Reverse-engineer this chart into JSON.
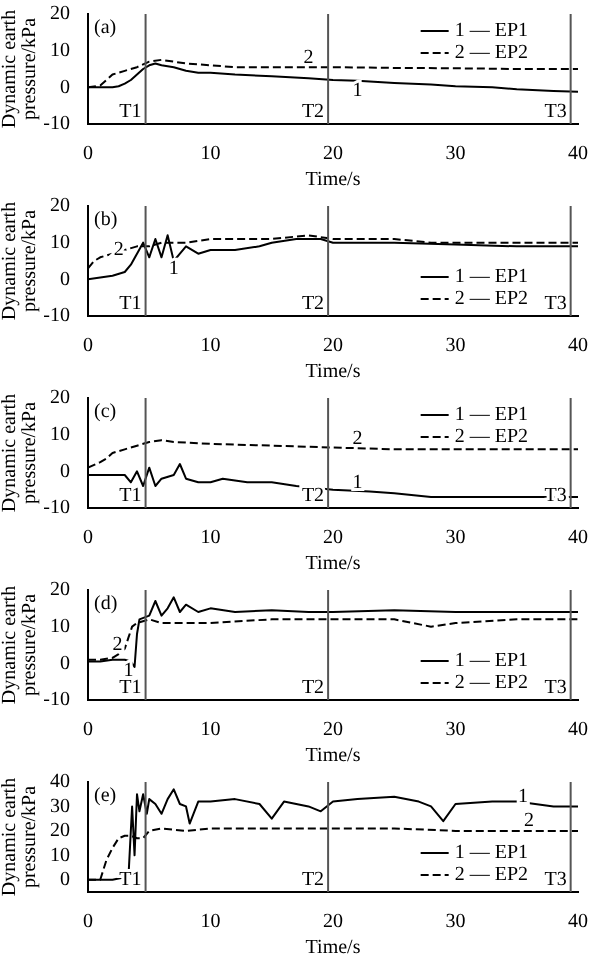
{
  "chart_data": [
    {
      "type": "line",
      "xlabel": "Time/s",
      "ylabel": "Dynamic earth pressure/kPa",
      "xlim": [
        0,
        40
      ],
      "xticks": [
        0,
        10,
        20,
        30,
        40
      ],
      "ylim": [
        -10,
        20
      ],
      "yticks": [
        -10,
        0,
        10,
        20
      ],
      "legend": "top right",
      "marker": "none",
      "annotations": [
        "(a)",
        {
          "text": "1",
          "x": 22,
          "y": -1
        },
        {
          "text": "2",
          "x": 18,
          "y": 8
        }
      ],
      "ref_lines": [
        {
          "axis": "x",
          "value": 4.7,
          "label": "T1"
        },
        {
          "axis": "x",
          "value": 19.6,
          "label": "T2"
        },
        {
          "axis": "x",
          "value": 39.4,
          "label": "T3"
        }
      ],
      "series": [
        {
          "name": "1 — EP1",
          "color": "#000000",
          "line_style": "solid",
          "x": [
            0,
            1,
            2,
            2.5,
            3,
            3.5,
            4,
            4.5,
            5,
            5.5,
            6,
            7,
            8,
            9,
            10,
            12,
            15,
            18,
            20,
            22,
            25,
            28,
            30,
            33,
            35,
            38,
            40
          ],
          "values": [
            0,
            0,
            0,
            0.3,
            1,
            2,
            3.5,
            5,
            6,
            6.5,
            6,
            5.5,
            4.5,
            4,
            4,
            3.5,
            3,
            2.5,
            2,
            1.8,
            1.2,
            0.8,
            0.3,
            0,
            -0.5,
            -1,
            -1.2
          ]
        },
        {
          "name": "2 — EP2",
          "color": "#000000",
          "line_style": "dashed",
          "x": [
            0,
            1,
            1.5,
            2,
            2.5,
            3,
            4,
            5,
            6,
            7,
            8,
            10,
            12,
            15,
            18,
            20,
            25,
            30,
            35,
            40
          ],
          "values": [
            0,
            0.5,
            2,
            3.5,
            4,
            4.5,
            5.5,
            7,
            7.5,
            7,
            6.5,
            6,
            5.5,
            5.5,
            5.5,
            5.5,
            5.3,
            5.2,
            5,
            5
          ]
        }
      ]
    },
    {
      "type": "line",
      "xlabel": "Time/s",
      "ylabel": "Dynamic earth pressure/kPa",
      "xlim": [
        0,
        40
      ],
      "xticks": [
        0,
        10,
        20,
        30,
        40
      ],
      "ylim": [
        -10,
        20
      ],
      "yticks": [
        -10,
        0,
        10,
        20
      ],
      "legend": "bottom right",
      "marker": "none",
      "annotations": [
        "(b)",
        {
          "text": "1",
          "x": 7,
          "y": 3
        },
        {
          "text": "2",
          "x": 2.5,
          "y": 8
        }
      ],
      "ref_lines": [
        {
          "axis": "x",
          "value": 4.7,
          "label": "T1"
        },
        {
          "axis": "x",
          "value": 19.6,
          "label": "T2"
        },
        {
          "axis": "x",
          "value": 39.4,
          "label": "T3"
        }
      ],
      "series": [
        {
          "name": "1 — EP1",
          "color": "#000000",
          "line_style": "solid",
          "x": [
            0,
            1,
            2,
            3,
            3.5,
            4,
            4.5,
            5,
            5.5,
            6,
            6.5,
            7,
            8,
            9,
            10,
            12,
            14,
            15,
            17,
            19,
            20,
            25,
            30,
            35,
            40
          ],
          "values": [
            0,
            0.5,
            1,
            2,
            4,
            7,
            10,
            6,
            11,
            6,
            12,
            5,
            9,
            7,
            8,
            8,
            9,
            10,
            11,
            11,
            10,
            10,
            9.5,
            9,
            9
          ]
        },
        {
          "name": "2 — EP2",
          "color": "#000000",
          "line_style": "dashed",
          "x": [
            0,
            0.5,
            1,
            2,
            3,
            4,
            5,
            6,
            8,
            10,
            12,
            15,
            18,
            20,
            25,
            28,
            30,
            35,
            40
          ],
          "values": [
            3,
            5,
            6,
            7,
            8,
            9,
            9,
            10,
            10,
            11,
            11,
            11,
            12,
            11,
            11,
            10,
            10,
            10,
            10
          ]
        }
      ]
    },
    {
      "type": "line",
      "xlabel": "Time/s",
      "ylabel": "Dynamic earth pressure/kPa",
      "xlim": [
        0,
        40
      ],
      "xticks": [
        0,
        10,
        20,
        30,
        40
      ],
      "ylim": [
        -10,
        20
      ],
      "yticks": [
        -10,
        0,
        10,
        20
      ],
      "legend": "top right",
      "marker": "none",
      "annotations": [
        "(c)",
        {
          "text": "1",
          "x": 22,
          "y": -3
        },
        {
          "text": "2",
          "x": 22,
          "y": 9
        }
      ],
      "ref_lines": [
        {
          "axis": "x",
          "value": 4.7,
          "label": "T1"
        },
        {
          "axis": "x",
          "value": 19.6,
          "label": "T2"
        },
        {
          "axis": "x",
          "value": 39.4,
          "label": "T3"
        }
      ],
      "series": [
        {
          "name": "1 — EP1",
          "color": "#000000",
          "line_style": "solid",
          "x": [
            0,
            1,
            2,
            3,
            3.5,
            4,
            4.5,
            5,
            5.5,
            6,
            7,
            7.5,
            8,
            9,
            10,
            11,
            13,
            15,
            17,
            20,
            23,
            25,
            28,
            30,
            35,
            40
          ],
          "values": [
            -1,
            -1,
            -1,
            -1,
            -3,
            0,
            -4,
            1,
            -4,
            -2,
            -1,
            2,
            -2,
            -3,
            -3,
            -2,
            -3,
            -3,
            -4,
            -5,
            -5.5,
            -6,
            -7,
            -7,
            -7,
            -7
          ]
        },
        {
          "name": "2 — EP2",
          "color": "#000000",
          "line_style": "dashed",
          "x": [
            0,
            1,
            1.5,
            2,
            3,
            4,
            5,
            6,
            7,
            10,
            15,
            20,
            25,
            30,
            35,
            40
          ],
          "values": [
            1,
            2.5,
            3.5,
            5,
            6,
            7,
            8,
            8.5,
            8,
            7.5,
            7,
            6.5,
            6,
            6,
            6,
            6
          ]
        }
      ]
    },
    {
      "type": "line",
      "xlabel": "Time/s",
      "ylabel": "Dynamic earth pressure/kPa",
      "xlim": [
        0,
        40
      ],
      "xticks": [
        0,
        10,
        20,
        30,
        40
      ],
      "ylim": [
        -10,
        20
      ],
      "yticks": [
        -10,
        0,
        10,
        20
      ],
      "legend": "bottom right",
      "marker": "none",
      "annotations": [
        "(d)",
        {
          "text": "1",
          "x": 3.3,
          "y": -2
        },
        {
          "text": "2",
          "x": 2.4,
          "y": 5
        }
      ],
      "ref_lines": [
        {
          "axis": "x",
          "value": 4.7,
          "label": "T1"
        },
        {
          "axis": "x",
          "value": 19.6,
          "label": "T2"
        },
        {
          "axis": "x",
          "value": 39.4,
          "label": "T3"
        }
      ],
      "series": [
        {
          "name": "1 — EP1",
          "color": "#000000",
          "line_style": "solid",
          "x": [
            0,
            1,
            2,
            3,
            3.5,
            3.8,
            4,
            4.2,
            5,
            5.5,
            6,
            6.5,
            7,
            7.5,
            8,
            9,
            10,
            12,
            15,
            18,
            20,
            25,
            30,
            35,
            40
          ],
          "values": [
            0.5,
            0.5,
            1,
            1,
            0.5,
            -1,
            8,
            12,
            13,
            17,
            13,
            15,
            18,
            14,
            16,
            14,
            15,
            14,
            14.5,
            14,
            14,
            14.5,
            14,
            14,
            14
          ]
        },
        {
          "name": "2 — EP2",
          "color": "#000000",
          "line_style": "dashed",
          "x": [
            0,
            1,
            2,
            2.5,
            3,
            3.3,
            3.6,
            4,
            5,
            6,
            8,
            10,
            15,
            20,
            25,
            28,
            30,
            35,
            40
          ],
          "values": [
            1,
            1,
            1.5,
            2.5,
            4,
            7,
            10,
            11,
            12,
            11,
            11,
            11,
            12,
            12,
            12,
            10,
            11,
            12,
            12
          ]
        }
      ]
    },
    {
      "type": "line",
      "xlabel": "Time/s",
      "ylabel": "Dynamic earth pressure/kPa",
      "xlim": [
        0,
        40
      ],
      "xticks": [
        0,
        10,
        20,
        30,
        40
      ],
      "ylim": [
        -5,
        40
      ],
      "yticks": [
        0,
        10,
        20,
        30,
        40
      ],
      "legend": "bottom right",
      "marker": "none",
      "annotations": [
        "(e)",
        {
          "text": "1",
          "x": 35.5,
          "y": 34
        },
        {
          "text": "2",
          "x": 36,
          "y": 24
        }
      ],
      "ref_lines": [
        {
          "axis": "x",
          "value": 4.7,
          "label": "T1"
        },
        {
          "axis": "x",
          "value": 19.6,
          "label": "T2"
        },
        {
          "axis": "x",
          "value": 39.4,
          "label": "T3"
        }
      ],
      "series": [
        {
          "name": "1 — EP1",
          "color": "#000000",
          "line_style": "solid",
          "x": [
            0,
            1,
            2,
            3,
            3.3,
            3.6,
            3.8,
            4,
            4.2,
            4.5,
            4.8,
            5,
            5.5,
            6,
            6.5,
            7,
            7.5,
            8,
            8.3,
            9,
            10,
            12,
            14,
            15,
            16,
            18,
            19,
            20,
            22,
            25,
            27,
            28,
            29,
            30,
            33,
            35,
            38,
            40
          ],
          "values": [
            0,
            0,
            0,
            1,
            1,
            30,
            10,
            35,
            28,
            35,
            27,
            33,
            31,
            27,
            33,
            37,
            31,
            30,
            23,
            32,
            32,
            33,
            31,
            25,
            32,
            30,
            28,
            32,
            33,
            34,
            32,
            30,
            24,
            31,
            32,
            32,
            30,
            30
          ]
        },
        {
          "name": "2 — EP2",
          "color": "#000000",
          "line_style": "dashed",
          "x": [
            0,
            1,
            1.5,
            2,
            2.5,
            3,
            3.5,
            4,
            4.5,
            5,
            6,
            8,
            10,
            15,
            20,
            25,
            30,
            35,
            40
          ],
          "values": [
            0,
            0,
            8,
            13,
            17,
            18,
            18,
            17,
            17,
            20,
            21,
            20,
            21,
            21,
            21,
            21,
            20,
            20,
            20
          ]
        }
      ]
    }
  ]
}
